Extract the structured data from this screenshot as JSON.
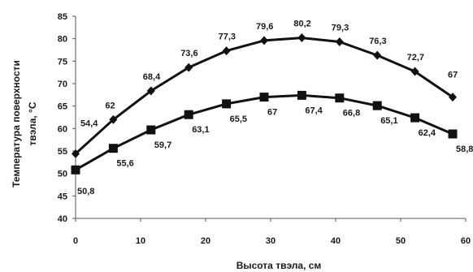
{
  "chart_data": {
    "type": "line",
    "title": "",
    "xlabel": "Высота твэла, см",
    "ylabel_lines": [
      "Температура поверхности",
      "твэла, °С"
    ],
    "xlim": [
      0,
      60
    ],
    "ylim": [
      40,
      85
    ],
    "xticks": [
      "0",
      "10",
      "20",
      "30",
      "40",
      "50",
      "60"
    ],
    "yticks": [
      "40",
      "45",
      "50",
      "55",
      "60",
      "65",
      "70",
      "75",
      "80",
      "85"
    ],
    "grid": false,
    "legend": "none",
    "x": [
      0,
      5.8,
      11.6,
      17.4,
      23.2,
      29,
      34.8,
      40.6,
      46.4,
      52.2,
      58
    ],
    "series": [
      {
        "marker": "diamond",
        "color": "#111111",
        "values": [
          54.4,
          62,
          68.4,
          73.6,
          77.3,
          79.6,
          80.2,
          79.3,
          76.3,
          72.7,
          67
        ],
        "labels": [
          "54,4",
          "62",
          "68,4",
          "73,6",
          "77,3",
          "79,6",
          "80,2",
          "79,3",
          "76,3",
          "72,7",
          "67"
        ]
      },
      {
        "marker": "square",
        "color": "#111111",
        "values": [
          50.8,
          55.6,
          59.7,
          63.1,
          65.5,
          67,
          67.4,
          66.8,
          65.1,
          62.4,
          58.8
        ],
        "labels": [
          "50,8",
          "55,6",
          "59,7",
          "63,1",
          "65,5",
          "67",
          "67,4",
          "66,8",
          "65,1",
          "62,4",
          "58,8"
        ]
      }
    ]
  }
}
